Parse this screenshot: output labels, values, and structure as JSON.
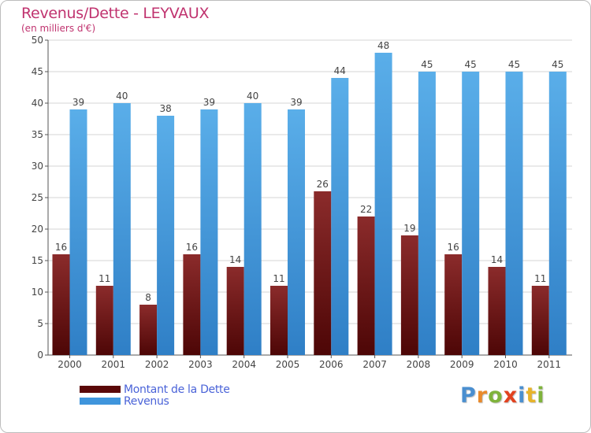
{
  "title": "Revenus/Dette - LEYVAUX",
  "subtitle": "(en milliers d'€)",
  "logo": {
    "text": "Proxiti",
    "colors": [
      "#4a8fd0",
      "#e98a2b",
      "#7fb33b",
      "#e2421f",
      "#4a8fd0",
      "#e7b32a",
      "#7fb33b"
    ]
  },
  "chart_data": {
    "type": "bar",
    "categories": [
      "2000",
      "2001",
      "2002",
      "2003",
      "2004",
      "2005",
      "2006",
      "2007",
      "2008",
      "2009",
      "2010",
      "2011"
    ],
    "series": [
      {
        "name": "Montant de la Dette",
        "values": [
          16,
          11,
          8,
          16,
          14,
          11,
          26,
          22,
          19,
          16,
          14,
          11
        ],
        "color": "#8b1f1f"
      },
      {
        "name": "Revenus",
        "values": [
          39,
          40,
          38,
          39,
          40,
          39,
          44,
          48,
          45,
          45,
          45,
          45
        ],
        "color": "#4a9fe3"
      }
    ],
    "ylim": [
      0,
      50
    ],
    "yticks": [
      0,
      5,
      10,
      15,
      20,
      25,
      30,
      35,
      40,
      45,
      50
    ],
    "grid": true,
    "legend": "bottom-left"
  }
}
